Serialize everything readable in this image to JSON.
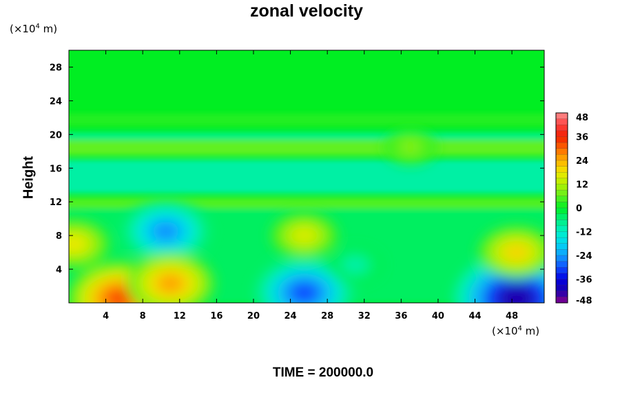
{
  "title": "zonal velocity",
  "y_unit": {
    "prefix": "(×10",
    "exp": "4",
    "suffix": " m)"
  },
  "x_unit": {
    "prefix": "(×10",
    "exp": "4",
    "suffix": " m)"
  },
  "footer": "TIME = 200000.0",
  "chart_data": {
    "type": "heatmap",
    "title": "zonal velocity",
    "ylabel": "Height",
    "xlabel": "",
    "xlim": [
      0,
      51.5
    ],
    "ylim": [
      0,
      30
    ],
    "x_ticks": [
      4,
      8,
      12,
      16,
      20,
      24,
      28,
      32,
      36,
      40,
      44,
      48
    ],
    "y_ticks": [
      4,
      8,
      12,
      16,
      20,
      24,
      28
    ],
    "colorbar": {
      "ticks": [
        48,
        36,
        24,
        12,
        0,
        -12,
        -24,
        -36,
        -48
      ],
      "range": [
        -48,
        48
      ]
    },
    "field_features": [
      {
        "x": 10.5,
        "y": 8.5,
        "value": -25
      },
      {
        "x": 25.5,
        "y": 1.2,
        "value": -30
      },
      {
        "x": 48.5,
        "y": 0.5,
        "value": -42
      },
      {
        "x": 5.5,
        "y": 0.5,
        "value": 32
      },
      {
        "x": 11,
        "y": 2.3,
        "value": 25
      },
      {
        "x": 25.5,
        "y": 8,
        "value": 16
      },
      {
        "x": 48.5,
        "y": 6,
        "value": 20
      },
      {
        "x": 0.5,
        "y": 7,
        "value": 18
      },
      {
        "x": 37,
        "y": 18.5,
        "value": 9
      },
      {
        "x": 31,
        "y": 4.5,
        "value": -10
      }
    ]
  }
}
